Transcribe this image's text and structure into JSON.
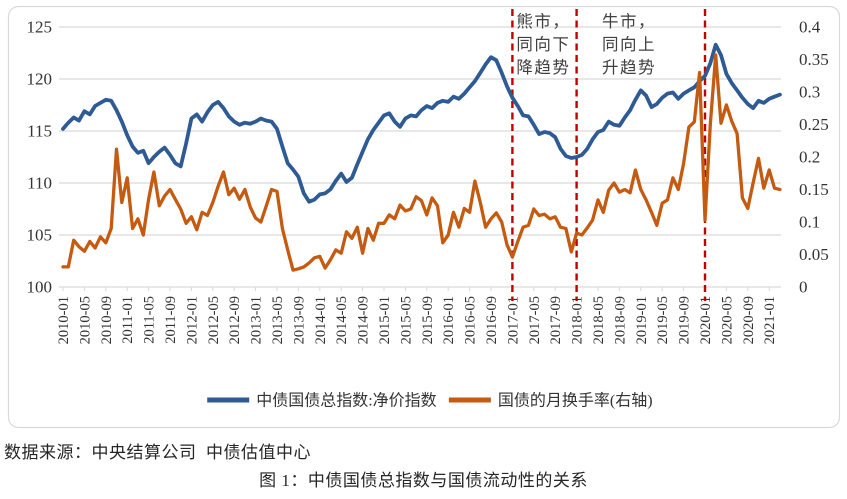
{
  "figure": {
    "source_line": "数据来源：中央结算公司  中债估值中心",
    "caption": "图 1：中债国债总指数与国债流动性的关系"
  },
  "colors": {
    "index_line": "#2F5B94",
    "turnover_line": "#C55A11",
    "event_line": "#C00000",
    "gridline": "#D9D9D9",
    "axis_text": "#333333",
    "annotation_text": "#404040",
    "chart_border": "#D9D9D9"
  },
  "chart_data": {
    "type": "line",
    "x_start": "2010-01",
    "x_tick_labels": [
      "2010-01",
      "2010-05",
      "2010-09",
      "2011-01",
      "2011-05",
      "2011-09",
      "2012-01",
      "2012-05",
      "2012-09",
      "2013-01",
      "2013-05",
      "2013-09",
      "2014-01",
      "2014-05",
      "2014-09",
      "2015-01",
      "2015-05",
      "2015-09",
      "2016-01",
      "2016-05",
      "2016-09",
      "2017-01",
      "2017-05",
      "2017-09",
      "2018-01",
      "2018-05",
      "2018-09",
      "2019-01",
      "2019-05",
      "2019-09",
      "2020-01",
      "2020-05",
      "2020-09",
      "2021-01"
    ],
    "left_axis": {
      "ticks": [
        "125",
        "120",
        "115",
        "110",
        "105",
        "100"
      ],
      "range": [
        100,
        125
      ]
    },
    "right_axis": {
      "ticks": [
        "0.4",
        "0.35",
        "0.3",
        "0.25",
        "0.2",
        "0.15",
        "0.1",
        "0.05",
        "0"
      ],
      "range": [
        0,
        0.4
      ]
    },
    "legend_position": "bottom",
    "grid": true,
    "series": [
      {
        "name": "中债国债总指数:净价指数",
        "axis": "left",
        "color": "#2F5B94",
        "values": [
          115.2,
          115.8,
          116.3,
          116.0,
          116.9,
          116.6,
          117.4,
          117.7,
          118.0,
          117.9,
          117.0,
          115.9,
          114.6,
          113.5,
          112.9,
          113.1,
          111.9,
          112.5,
          113.0,
          113.4,
          112.7,
          111.9,
          111.6,
          113.8,
          116.2,
          116.6,
          115.9,
          116.8,
          117.5,
          117.8,
          117.2,
          116.4,
          115.9,
          115.6,
          115.8,
          115.7,
          115.9,
          116.2,
          116.0,
          115.9,
          115.2,
          113.5,
          111.9,
          111.3,
          110.6,
          109.0,
          108.2,
          108.4,
          108.9,
          109.0,
          109.4,
          110.2,
          110.9,
          110.1,
          110.5,
          111.8,
          113.0,
          114.2,
          115.1,
          115.8,
          116.5,
          116.7,
          115.9,
          115.4,
          116.2,
          116.5,
          116.4,
          117.0,
          117.4,
          117.2,
          117.7,
          117.9,
          117.8,
          118.3,
          118.1,
          118.6,
          119.2,
          119.8,
          120.6,
          121.4,
          122.1,
          121.8,
          120.6,
          119.3,
          118.2,
          117.4,
          116.5,
          116.4,
          115.6,
          114.7,
          114.9,
          114.8,
          114.4,
          113.3,
          112.6,
          112.4,
          112.5,
          112.7,
          113.3,
          114.2,
          114.9,
          115.1,
          115.9,
          115.6,
          115.5,
          116.3,
          117.0,
          118.0,
          118.9,
          118.4,
          117.3,
          117.6,
          118.2,
          118.6,
          118.7,
          118.1,
          118.6,
          118.9,
          119.2,
          119.8,
          120.3,
          121.5,
          123.3,
          122.3,
          120.5,
          119.6,
          118.9,
          118.2,
          117.6,
          117.2,
          117.9,
          117.7,
          118.1,
          118.3,
          118.5
        ]
      },
      {
        "name": "国债的月换手率(右轴)",
        "axis": "right",
        "color": "#C55A11",
        "values": [
          0.031,
          0.031,
          0.072,
          0.062,
          0.055,
          0.07,
          0.06,
          0.077,
          0.068,
          0.09,
          0.212,
          0.13,
          0.168,
          0.09,
          0.105,
          0.08,
          0.135,
          0.177,
          0.125,
          0.14,
          0.15,
          0.135,
          0.12,
          0.098,
          0.108,
          0.088,
          0.115,
          0.11,
          0.13,
          0.155,
          0.177,
          0.142,
          0.152,
          0.135,
          0.15,
          0.123,
          0.106,
          0.1,
          0.125,
          0.15,
          0.147,
          0.09,
          0.057,
          0.026,
          0.028,
          0.031,
          0.037,
          0.045,
          0.047,
          0.029,
          0.042,
          0.057,
          0.052,
          0.085,
          0.075,
          0.092,
          0.052,
          0.09,
          0.072,
          0.098,
          0.098,
          0.111,
          0.105,
          0.126,
          0.117,
          0.12,
          0.139,
          0.133,
          0.111,
          0.137,
          0.125,
          0.068,
          0.08,
          0.115,
          0.092,
          0.121,
          0.115,
          0.163,
          0.13,
          0.092,
          0.105,
          0.114,
          0.1,
          0.065,
          0.046,
          0.07,
          0.092,
          0.095,
          0.12,
          0.11,
          0.112,
          0.105,
          0.108,
          0.092,
          0.09,
          0.054,
          0.083,
          0.08,
          0.091,
          0.103,
          0.134,
          0.115,
          0.149,
          0.16,
          0.146,
          0.15,
          0.145,
          0.18,
          0.15,
          0.134,
          0.115,
          0.095,
          0.129,
          0.134,
          0.168,
          0.15,
          0.19,
          0.246,
          0.254,
          0.33,
          0.103,
          0.25,
          0.357,
          0.252,
          0.28,
          0.255,
          0.236,
          0.137,
          0.121,
          0.16,
          0.198,
          0.152,
          0.18,
          0.152,
          0.15
        ]
      }
    ],
    "event_lines": [
      {
        "at": "2017-01"
      },
      {
        "at": "2018-01"
      },
      {
        "at": "2020-01"
      }
    ],
    "annotations": [
      {
        "anchor": "2017-01",
        "lines": [
          "熊市，",
          "同向下",
          "降趋势"
        ]
      },
      {
        "anchor": "2018-05",
        "lines": [
          "牛市，",
          "同向上",
          "升趋势"
        ]
      }
    ]
  }
}
